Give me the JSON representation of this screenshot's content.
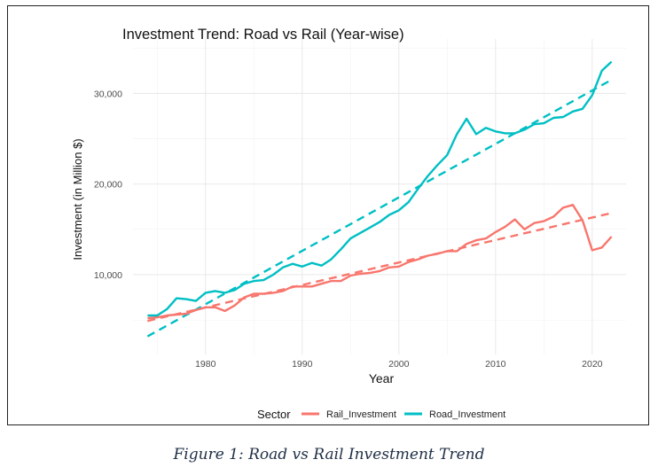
{
  "caption": "Figure 1: Road vs Rail Investment Trend",
  "chart_data": {
    "type": "line",
    "title": "Investment Trend: Road vs Rail (Year-wise)",
    "xlabel": "Year",
    "ylabel": "Investment (in Million $)",
    "xlim": [
      1972.5,
      2023.5
    ],
    "ylim": [
      1200,
      36000
    ],
    "xticks": [
      1980,
      1990,
      2000,
      2010,
      2020
    ],
    "yticks": [
      10000,
      20000,
      30000
    ],
    "ytick_labels": [
      "10,000",
      "20,000",
      "30,000"
    ],
    "grid": true,
    "legend": {
      "title": "Sector",
      "position": "bottom"
    },
    "x": [
      1974,
      1975,
      1976,
      1977,
      1978,
      1979,
      1980,
      1981,
      1982,
      1983,
      1984,
      1985,
      1986,
      1987,
      1988,
      1989,
      1990,
      1991,
      1992,
      1993,
      1994,
      1995,
      1996,
      1997,
      1998,
      1999,
      2000,
      2001,
      2002,
      2003,
      2004,
      2005,
      2006,
      2007,
      2008,
      2009,
      2010,
      2011,
      2012,
      2013,
      2014,
      2015,
      2016,
      2017,
      2018,
      2019,
      2020,
      2021,
      2022
    ],
    "series": [
      {
        "name": "Rail_Investment",
        "color": "#F8766D",
        "values": [
          5200,
          5300,
          5500,
          5600,
          5700,
          6100,
          6400,
          6400,
          6000,
          6600,
          7500,
          7900,
          7900,
          8000,
          8200,
          8700,
          8700,
          8700,
          9000,
          9300,
          9300,
          9900,
          10100,
          10200,
          10400,
          10800,
          10900,
          11400,
          11700,
          12100,
          12300,
          12600,
          12600,
          13400,
          13800,
          14000,
          14700,
          15300,
          16100,
          15000,
          15700,
          15900,
          16400,
          17400,
          17700,
          16000,
          12700,
          13000,
          14200
        ],
        "trend": [
          4900,
          16800
        ]
      },
      {
        "name": "Road_Investment",
        "color": "#00BFC4",
        "values": [
          5500,
          5500,
          6200,
          7400,
          7300,
          7100,
          8000,
          8200,
          8000,
          8300,
          9000,
          9300,
          9400,
          10000,
          10800,
          11200,
          10900,
          11300,
          11000,
          11700,
          12800,
          14000,
          14600,
          15200,
          15800,
          16600,
          17100,
          18000,
          19500,
          20900,
          22100,
          23200,
          25500,
          27200,
          25500,
          26200,
          25800,
          25600,
          25600,
          26000,
          26600,
          26700,
          27300,
          27400,
          28000,
          28300,
          29800,
          32500,
          33500
        ],
        "trend": [
          3200,
          31500
        ]
      }
    ]
  }
}
